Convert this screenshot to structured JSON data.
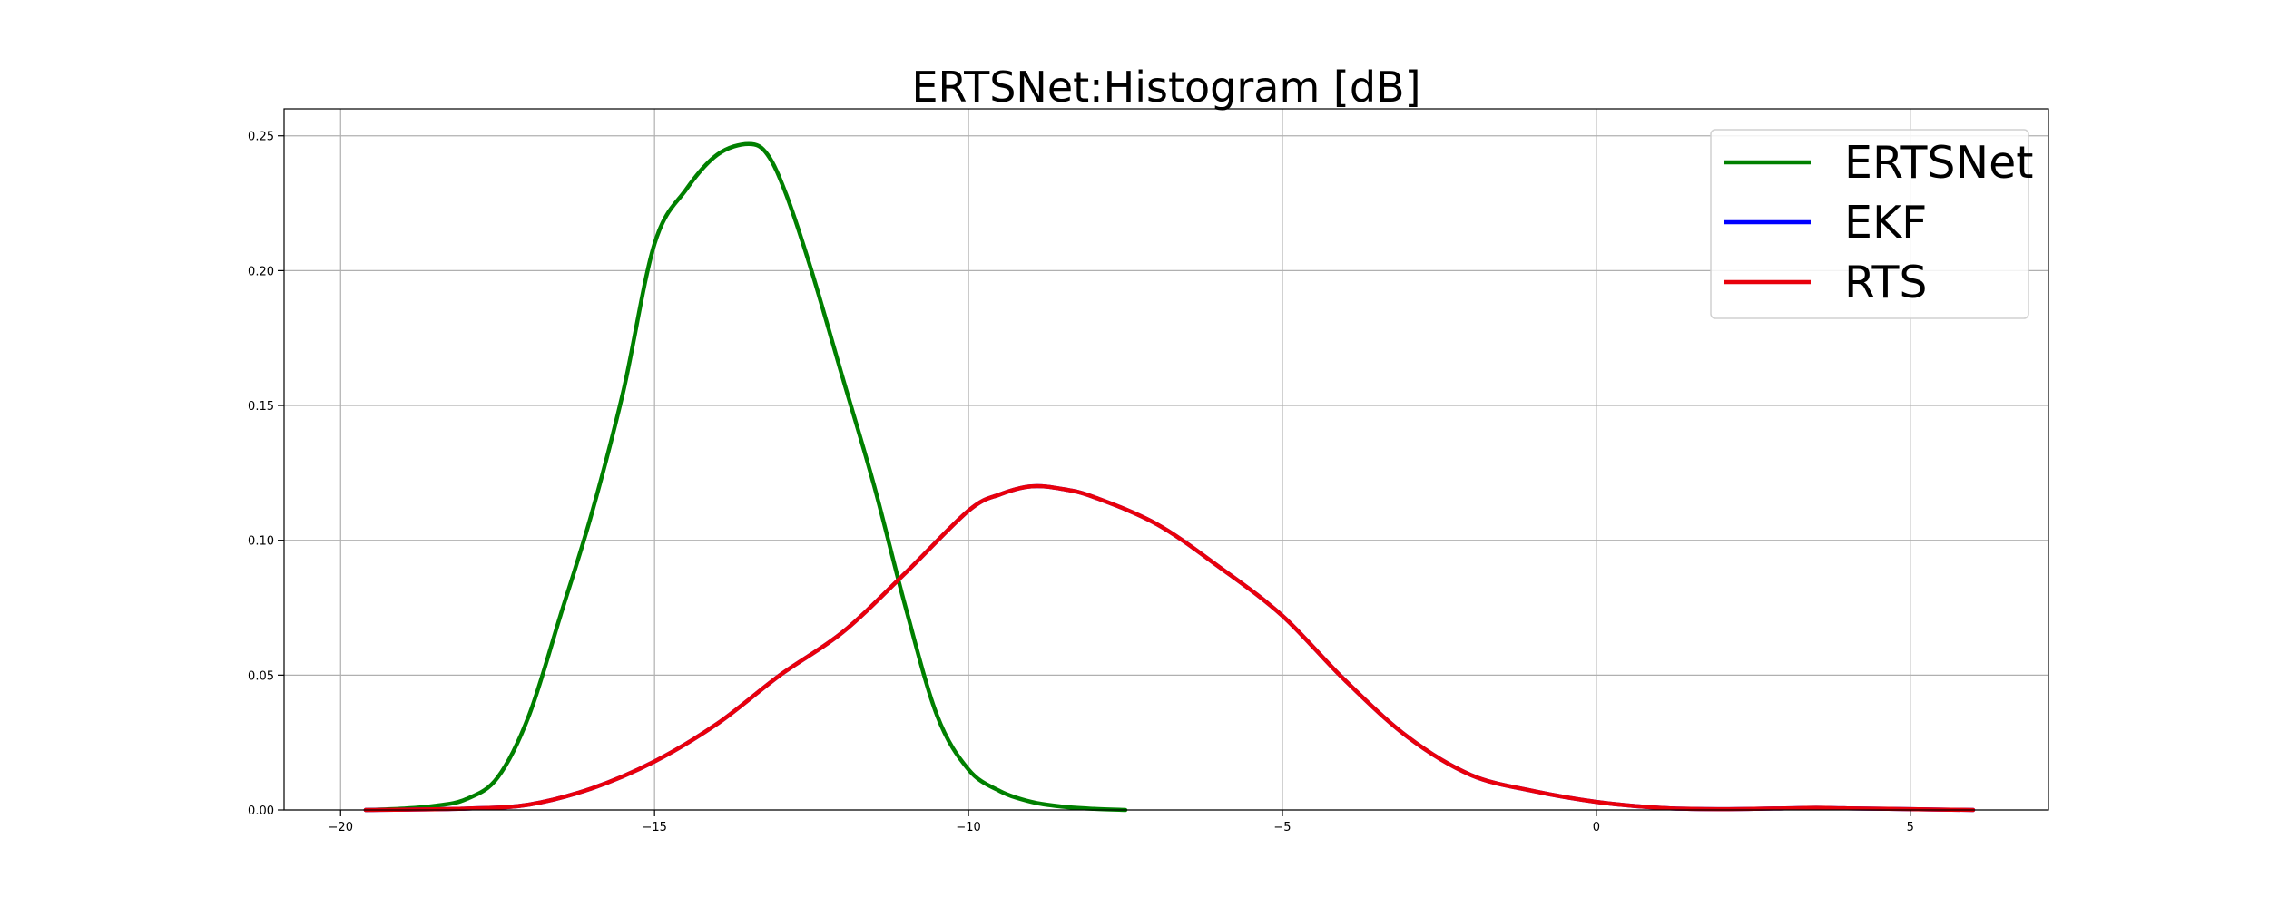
{
  "chart_data": {
    "type": "line",
    "title": "ERTSNet:Histogram [dB]",
    "xlabel": "",
    "ylabel": "",
    "xlim": [
      -20.9,
      7.2
    ],
    "ylim": [
      0,
      0.26
    ],
    "grid": true,
    "legend_position": "top-right",
    "x_ticks": [
      -20,
      -15,
      -10,
      -5,
      0,
      5
    ],
    "x_tick_labels": [
      "−20",
      "−15",
      "−10",
      "−5",
      "0",
      "5"
    ],
    "y_ticks": [
      0.0,
      0.05,
      0.1,
      0.15,
      0.2,
      0.25
    ],
    "y_tick_labels": [
      "0.00",
      "0.05",
      "0.10",
      "0.15",
      "0.20",
      "0.25"
    ],
    "series": [
      {
        "name": "ERTSNet",
        "color": "#008000",
        "x": [
          -19.6,
          -19.0,
          -18.5,
          -18.0,
          -17.5,
          -17.0,
          -16.5,
          -16.0,
          -15.5,
          -15.0,
          -14.5,
          -14.0,
          -13.5,
          -13.2,
          -12.9,
          -12.5,
          -12.0,
          -11.5,
          -11.0,
          -10.5,
          -10.0,
          -9.5,
          -9.0,
          -8.5,
          -8.0,
          -7.5
        ],
        "y": [
          0.0,
          0.0005,
          0.0015,
          0.004,
          0.012,
          0.035,
          0.072,
          0.11,
          0.155,
          0.21,
          0.23,
          0.243,
          0.247,
          0.243,
          0.228,
          0.2,
          0.16,
          0.12,
          0.075,
          0.035,
          0.015,
          0.007,
          0.003,
          0.0012,
          0.0004,
          0.0
        ]
      },
      {
        "name": "EKF",
        "color": "#0000ff",
        "x": [
          -19.6,
          -18.0,
          -17.0,
          -16.0,
          -15.0,
          -14.0,
          -13.0,
          -12.0,
          -11.0,
          -10.0,
          -9.5,
          -9.0,
          -8.5,
          -8.0,
          -7.0,
          -6.0,
          -5.0,
          -4.0,
          -3.0,
          -2.0,
          -1.0,
          0.0,
          1.0,
          2.0,
          3.0,
          3.5,
          4.0,
          5.0,
          6.0
        ],
        "y": [
          0.0,
          0.0005,
          0.002,
          0.008,
          0.018,
          0.032,
          0.05,
          0.066,
          0.088,
          0.111,
          0.117,
          0.12,
          0.119,
          0.116,
          0.106,
          0.09,
          0.072,
          0.048,
          0.027,
          0.013,
          0.007,
          0.003,
          0.0008,
          0.0003,
          0.0006,
          0.0008,
          0.0006,
          0.0003,
          0.0
        ]
      },
      {
        "name": "RTS",
        "color": "#e8000b",
        "x": [
          -19.6,
          -18.0,
          -17.0,
          -16.0,
          -15.0,
          -14.0,
          -13.0,
          -12.0,
          -11.0,
          -10.0,
          -9.5,
          -9.0,
          -8.5,
          -8.0,
          -7.0,
          -6.0,
          -5.0,
          -4.0,
          -3.0,
          -2.0,
          -1.0,
          0.0,
          1.0,
          2.0,
          3.0,
          3.5,
          4.0,
          5.0,
          6.0
        ],
        "y": [
          0.0,
          0.0005,
          0.002,
          0.008,
          0.018,
          0.032,
          0.05,
          0.066,
          0.088,
          0.111,
          0.117,
          0.12,
          0.119,
          0.116,
          0.106,
          0.09,
          0.072,
          0.048,
          0.027,
          0.013,
          0.007,
          0.003,
          0.0008,
          0.0003,
          0.0006,
          0.0008,
          0.0006,
          0.0003,
          0.0
        ]
      }
    ]
  }
}
